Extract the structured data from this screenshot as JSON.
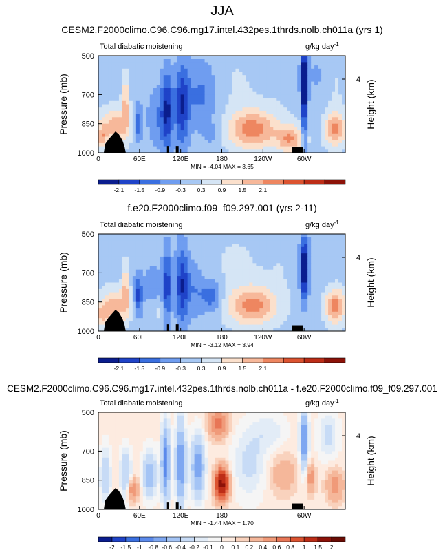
{
  "figure": {
    "title": "JJA"
  },
  "chart_data": [
    {
      "type": "heatmap",
      "title": "CESM2.F2000climo.C96.C96.mg17.intel.432pes.1thrds.nolb.ch011a (yrs 1)",
      "left_label": "Total diabatic moistening",
      "right_label": "g/kg day",
      "units_exponent": "-1",
      "ylabel": "Pressure (mb)",
      "y2label": "Height (km)",
      "y2ticks": [
        "4"
      ],
      "x_ticks": [
        "0",
        "60E",
        "120E",
        "180",
        "120W",
        "60W"
      ],
      "x_tick_lons": [
        0,
        60,
        120,
        180,
        240,
        300
      ],
      "y_ticks": [
        "500",
        "700",
        "850",
        "1000"
      ],
      "y_tick_values": [
        500,
        700,
        850,
        1000
      ],
      "ylim": [
        1000,
        500
      ],
      "xlim": [
        0,
        360
      ],
      "stats": "MIN =  -4.04   MAX =   3.65",
      "colorbar_labels": [
        "-2.1",
        "-1.5",
        "-0.9",
        "-0.3",
        "0.3",
        "0.9",
        "1.5",
        "2.1"
      ],
      "blobs": [
        {
          "lon": 100,
          "p": 780,
          "rx": 8,
          "rp": 200,
          "v": -2.2
        },
        {
          "lon": 122,
          "p": 760,
          "rx": 10,
          "rp": 220,
          "v": -2.0
        },
        {
          "lon": 58,
          "p": 850,
          "rx": 6,
          "rp": 90,
          "v": -1.6
        },
        {
          "lon": 150,
          "p": 700,
          "rx": 25,
          "rp": 180,
          "v": -1.1
        },
        {
          "lon": 85,
          "p": 820,
          "rx": 14,
          "rp": 150,
          "v": -0.9
        },
        {
          "lon": 300,
          "p": 620,
          "rx": 5,
          "rp": 130,
          "v": -4.0
        },
        {
          "lon": 300,
          "p": 850,
          "rx": 4,
          "rp": 160,
          "v": -2.0
        },
        {
          "lon": 225,
          "p": 880,
          "rx": 35,
          "rp": 100,
          "v": 2.4
        },
        {
          "lon": 280,
          "p": 930,
          "rx": 20,
          "rp": 70,
          "v": 2.0
        },
        {
          "lon": 345,
          "p": 880,
          "rx": 15,
          "rp": 90,
          "v": 2.2
        },
        {
          "lon": 25,
          "p": 860,
          "rx": 22,
          "rp": 90,
          "v": 1.8
        },
        {
          "lon": 40,
          "p": 740,
          "rx": 5,
          "rp": 140,
          "v": 1.6
        },
        {
          "lon": 5,
          "p": 920,
          "rx": 8,
          "rp": 60,
          "v": 1.6
        },
        {
          "lon": 200,
          "p": 650,
          "rx": 40,
          "rp": 200,
          "v": 0.3
        },
        {
          "lon": 270,
          "p": 640,
          "rx": 25,
          "rp": 200,
          "v": 0.2
        },
        {
          "lon": 320,
          "p": 600,
          "rx": 25,
          "rp": 160,
          "v": -0.4
        },
        {
          "lon": 345,
          "p": 650,
          "rx": 14,
          "rp": 160,
          "v": 0.4
        },
        {
          "lon": 165,
          "p": 900,
          "rx": 12,
          "rp": 60,
          "v": -0.5
        }
      ]
    },
    {
      "type": "heatmap",
      "title": "f.e20.F2000climo.f09_f09.297.001 (yrs 2-11)",
      "left_label": "Total diabatic moistening",
      "right_label": "g/kg day",
      "units_exponent": "-1",
      "ylabel": "Pressure (mb)",
      "y2label": "Height (km)",
      "y2ticks": [
        "4"
      ],
      "x_ticks": [
        "0",
        "60E",
        "120E",
        "180",
        "120W",
        "60W"
      ],
      "x_tick_lons": [
        0,
        60,
        120,
        180,
        240,
        300
      ],
      "y_ticks": [
        "500",
        "700",
        "850",
        "1000"
      ],
      "y_tick_values": [
        500,
        700,
        850,
        1000
      ],
      "ylim": [
        1000,
        500
      ],
      "xlim": [
        0,
        360
      ],
      "stats": "MIN =  -3.12   MAX =   3.94",
      "colorbar_labels": [
        "-2.1",
        "-1.5",
        "-0.9",
        "-0.3",
        "0.3",
        "0.9",
        "1.5",
        "2.1"
      ],
      "blobs": [
        {
          "lon": 100,
          "p": 770,
          "rx": 6,
          "rp": 200,
          "v": -1.8
        },
        {
          "lon": 122,
          "p": 760,
          "rx": 9,
          "rp": 210,
          "v": -2.0
        },
        {
          "lon": 58,
          "p": 820,
          "rx": 6,
          "rp": 100,
          "v": -1.8
        },
        {
          "lon": 165,
          "p": 820,
          "rx": 15,
          "rp": 80,
          "v": -1.4
        },
        {
          "lon": 140,
          "p": 780,
          "rx": 15,
          "rp": 150,
          "v": -0.9
        },
        {
          "lon": 80,
          "p": 760,
          "rx": 20,
          "rp": 160,
          "v": -0.5
        },
        {
          "lon": 300,
          "p": 680,
          "rx": 6,
          "rp": 160,
          "v": -3.1
        },
        {
          "lon": 225,
          "p": 870,
          "rx": 35,
          "rp": 100,
          "v": 2.3
        },
        {
          "lon": 345,
          "p": 870,
          "rx": 15,
          "rp": 90,
          "v": 2.4
        },
        {
          "lon": 25,
          "p": 870,
          "rx": 22,
          "rp": 90,
          "v": 1.8
        },
        {
          "lon": 40,
          "p": 770,
          "rx": 5,
          "rp": 130,
          "v": 1.4
        },
        {
          "lon": 5,
          "p": 920,
          "rx": 8,
          "rp": 60,
          "v": 1.4
        },
        {
          "lon": 200,
          "p": 650,
          "rx": 50,
          "rp": 220,
          "v": 0.3
        },
        {
          "lon": 270,
          "p": 650,
          "rx": 25,
          "rp": 220,
          "v": 0.2
        },
        {
          "lon": 320,
          "p": 620,
          "rx": 25,
          "rp": 160,
          "v": -0.3
        },
        {
          "lon": 90,
          "p": 900,
          "rx": 10,
          "rp": 50,
          "v": 0.6
        }
      ]
    },
    {
      "type": "heatmap",
      "title": "CESM2.F2000climo.C96.C96.mg17.intel.432pes.1thrds.nolb.ch011a - f.e20.F2000climo.f09_f09.297.001",
      "left_label": "Total diabatic moistening",
      "right_label": "g/kg day",
      "units_exponent": "-1",
      "ylabel": "Pressure (mb)",
      "y2label": "Height (km)",
      "y2ticks": [
        "4"
      ],
      "x_ticks": [
        "0",
        "60E",
        "120E",
        "180",
        "60W"
      ],
      "x_tick_lons": [
        0,
        60,
        120,
        180,
        300
      ],
      "y_ticks": [
        "500",
        "700",
        "850",
        "1000"
      ],
      "y_tick_values": [
        500,
        700,
        850,
        1000
      ],
      "ylim": [
        1000,
        500
      ],
      "xlim": [
        0,
        360
      ],
      "stats": "MIN =  -1.44   MAX =   1.70",
      "colorbar_labels": [
        "-2",
        "-1.5",
        "-1",
        "-0.8",
        "-0.6",
        "-0.4",
        "-0.2",
        "-0.1",
        "0",
        "0.1",
        "0.2",
        "0.4",
        "0.6",
        "0.8",
        "1",
        "1.5",
        "2"
      ],
      "blobs": [
        {
          "lon": 98,
          "p": 760,
          "rx": 6,
          "rp": 200,
          "v": -1.0
        },
        {
          "lon": 120,
          "p": 760,
          "rx": 7,
          "rp": 220,
          "v": -0.9
        },
        {
          "lon": 145,
          "p": 780,
          "rx": 10,
          "rp": 160,
          "v": -0.8
        },
        {
          "lon": 75,
          "p": 820,
          "rx": 10,
          "rp": 120,
          "v": -0.6
        },
        {
          "lon": 40,
          "p": 820,
          "rx": 8,
          "rp": 130,
          "v": -0.5
        },
        {
          "lon": 10,
          "p": 830,
          "rx": 8,
          "rp": 150,
          "v": -0.4
        },
        {
          "lon": 300,
          "p": 640,
          "rx": 6,
          "rp": 150,
          "v": -1.0
        },
        {
          "lon": 220,
          "p": 760,
          "rx": 25,
          "rp": 180,
          "v": -0.3
        },
        {
          "lon": 180,
          "p": 870,
          "rx": 10,
          "rp": 80,
          "v": 1.6
        },
        {
          "lon": 175,
          "p": 560,
          "rx": 14,
          "rp": 70,
          "v": 0.7
        },
        {
          "lon": 50,
          "p": 900,
          "rx": 8,
          "rp": 60,
          "v": 0.6
        },
        {
          "lon": 310,
          "p": 840,
          "rx": 6,
          "rp": 80,
          "v": 0.5
        },
        {
          "lon": 345,
          "p": 880,
          "rx": 12,
          "rp": 80,
          "v": 0.5
        },
        {
          "lon": 270,
          "p": 820,
          "rx": 20,
          "rp": 100,
          "v": 0.3
        },
        {
          "lon": 250,
          "p": 600,
          "rx": 25,
          "rp": 100,
          "v": -0.2
        },
        {
          "lon": 335,
          "p": 620,
          "rx": 15,
          "rp": 120,
          "v": -0.3
        }
      ]
    }
  ],
  "colors": {
    "diverging_8": [
      "#0a1d8e",
      "#1f43c8",
      "#3a6fe0",
      "#6f9df0",
      "#a7c8f4",
      "#d5e5f5",
      "#fbe0cc",
      "#f7b89a",
      "#ee8660",
      "#dc5330",
      "#bd2d17",
      "#8c1208"
    ],
    "diverging_17": [
      "#0a1d8e",
      "#1f43c8",
      "#3a6fe0",
      "#5b8aeb",
      "#7ea7f1",
      "#a4c4f5",
      "#c7dbf6",
      "#e2ecf7",
      "#f5f5f5",
      "#fdebe0",
      "#f9d2bd",
      "#f5b79a",
      "#f09a79",
      "#e87656",
      "#dc5330",
      "#bd2d17",
      "#8c1208",
      "#6a0c04"
    ],
    "land": "#000000"
  }
}
